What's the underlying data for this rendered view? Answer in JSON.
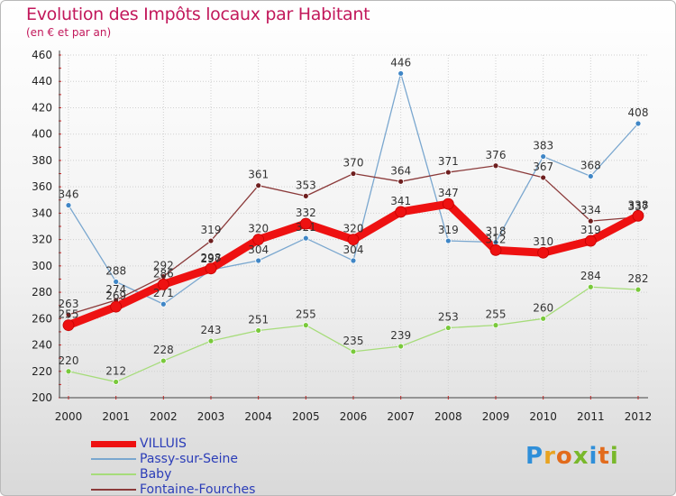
{
  "chart_data": {
    "type": "line",
    "title": "Evolution des Impôts locaux par Habitant",
    "subtitle": "(en € et par an)",
    "xlabel": "",
    "ylabel": "",
    "ylim": [
      200,
      460
    ],
    "yticks": [
      "200",
      "220",
      "240",
      "260",
      "280",
      "300",
      "320",
      "340",
      "360",
      "380",
      "400",
      "420",
      "440",
      "460"
    ],
    "categories": [
      "2000",
      "2001",
      "2002",
      "2003",
      "2004",
      "2005",
      "2006",
      "2007",
      "2008",
      "2009",
      "2010",
      "2011",
      "2012"
    ],
    "series": [
      {
        "name": "Passy-sur-Seine",
        "color": "#7aa7cf",
        "point": "#3f86c6",
        "width": 1.3,
        "values": [
          346,
          288,
          271,
          297,
          304,
          321,
          304,
          446,
          319,
          318,
          383,
          368,
          408
        ],
        "labels": [
          "346",
          "288",
          "271",
          "297",
          "304",
          "321",
          "304",
          "446",
          "319",
          "318",
          "383",
          "368",
          "408"
        ]
      },
      {
        "name": "Baby",
        "color": "#a6dc7a",
        "point": "#79c93b",
        "width": 1.3,
        "values": [
          220,
          212,
          228,
          243,
          251,
          255,
          235,
          239,
          253,
          255,
          260,
          284,
          282
        ],
        "labels": [
          "220",
          "212",
          "228",
          "243",
          "251",
          "255",
          "235",
          "239",
          "253",
          "255",
          "260",
          "284",
          "282"
        ]
      },
      {
        "name": "Fontaine-Fourches",
        "color": "#8b3a3a",
        "point": "#6e1f1f",
        "width": 1.3,
        "values": [
          263,
          274,
          292,
          319,
          361,
          353,
          370,
          364,
          371,
          376,
          367,
          334,
          337
        ],
        "labels": [
          "263",
          "274",
          "292",
          "319",
          "361",
          "353",
          "370",
          "364",
          "371",
          "376",
          "367",
          "334",
          "337"
        ]
      },
      {
        "name": "VILLUIS",
        "color": "#ee1111",
        "point": "#ee1111",
        "width": 9,
        "values": [
          255,
          269,
          286,
          298,
          320,
          332,
          320,
          341,
          347,
          312,
          310,
          319,
          338
        ],
        "labels": [
          "255",
          "269",
          "286",
          "298",
          "320",
          "332",
          "320",
          "341",
          "347",
          "312",
          "310",
          "319",
          "338"
        ]
      }
    ],
    "legend_position": "bottom-left",
    "grid": true
  },
  "legend": [
    {
      "name": "VILLUIS",
      "color": "#ee1111",
      "thick": "7px"
    },
    {
      "name": "Passy-sur-Seine",
      "color": "#7aa7cf",
      "thick": "2px"
    },
    {
      "name": "Baby",
      "color": "#a6dc7a",
      "thick": "2px"
    },
    {
      "name": "Fontaine-Fourches",
      "color": "#8b3a3a",
      "thick": "2px"
    }
  ],
  "logo": {
    "text": "Proxiti",
    "letters": [
      "P",
      "r",
      "o",
      "x",
      "i",
      "t",
      "i"
    ],
    "colors": [
      "#2f8fd9",
      "#e8a320",
      "#e26b1c",
      "#79b82b",
      "#2f8fd9",
      "#e26b1c",
      "#79b82b"
    ]
  }
}
